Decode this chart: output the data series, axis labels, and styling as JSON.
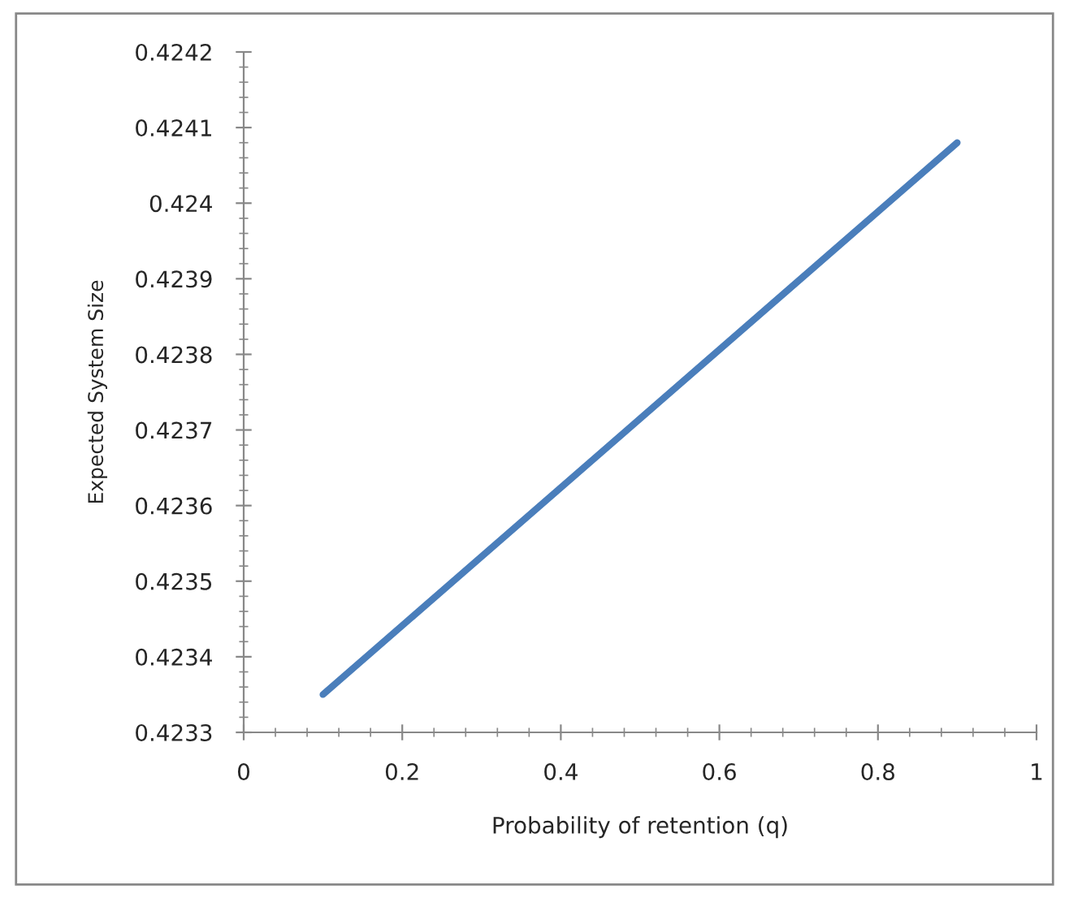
{
  "chart_data": {
    "type": "line",
    "xlabel": "Probability of retention (q)",
    "ylabel": "Expected System Size",
    "x": [
      0.1,
      0.9
    ],
    "series": [
      {
        "color": "#4a7ebb",
        "values": [
          0.42335,
          0.42408
        ]
      }
    ],
    "xlim": [
      0,
      1
    ],
    "xticks": [
      0,
      0.2,
      0.4,
      0.6,
      0.8,
      1
    ],
    "ylim": [
      0.4233,
      0.4242
    ],
    "yticks": [
      0.4233,
      0.4234,
      0.4235,
      0.4236,
      0.4237,
      0.4238,
      0.4239,
      0.424,
      0.4241,
      0.4242
    ],
    "grid": false,
    "legend": false,
    "marker": "none",
    "line_style": "solid"
  }
}
